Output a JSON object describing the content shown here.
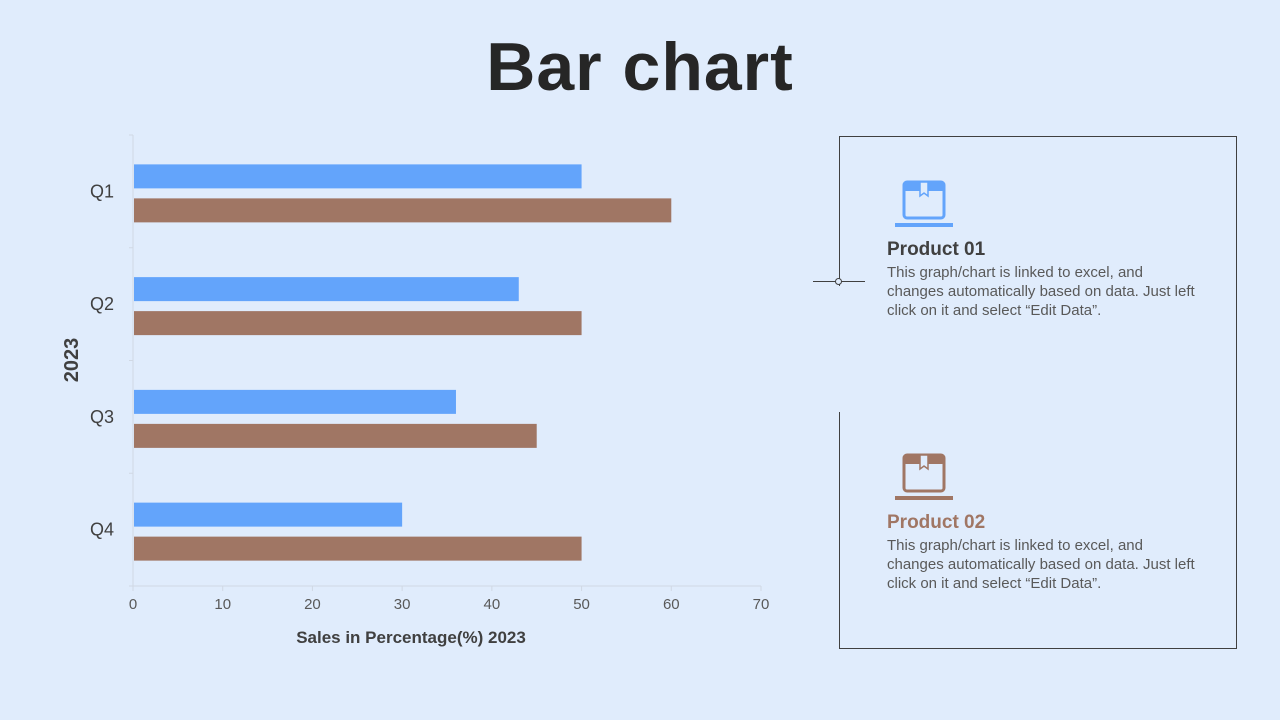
{
  "title": "Bar chart",
  "colors": {
    "series1": "#63a4fb",
    "series2": "#a07664",
    "product1_name": "#404040",
    "product2_name": "#a07664"
  },
  "chart_data": {
    "type": "bar",
    "orientation": "horizontal",
    "categories": [
      "Q1",
      "Q2",
      "Q3",
      "Q4"
    ],
    "series": [
      {
        "values": [
          50,
          43,
          36,
          30
        ]
      },
      {
        "values": [
          60,
          50,
          45,
          50
        ]
      }
    ],
    "xlabel": "Sales in Percentage(%) 2023",
    "ylabel": "2023",
    "xlim": [
      0,
      70
    ],
    "xticks": [
      0,
      10,
      20,
      30,
      40,
      50,
      60,
      70
    ],
    "grid": false
  },
  "products": [
    {
      "name": "Product 01",
      "description": "This graph/chart is linked to excel, and changes automatically based on data. Just left click on it and select “Edit Data”.",
      "icon": "box-icon"
    },
    {
      "name": "Product 02",
      "description": "This graph/chart is linked to excel, and changes automatically based on data. Just left click on it and select “Edit Data”.",
      "icon": "box-icon"
    }
  ]
}
